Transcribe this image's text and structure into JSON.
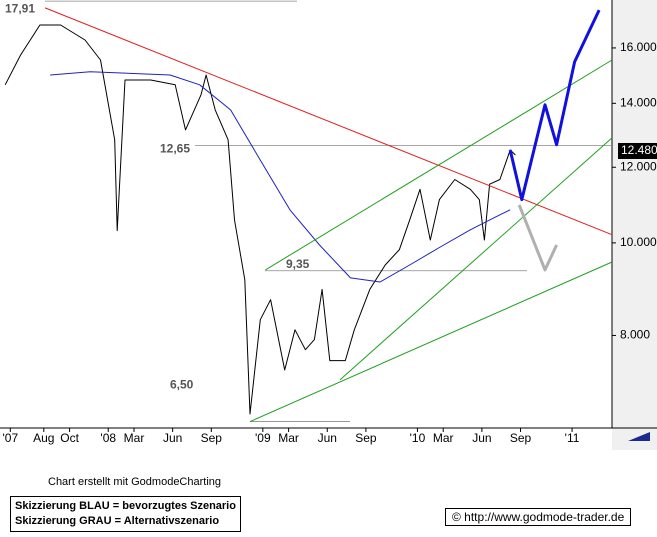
{
  "chart_data": {
    "type": "line",
    "log_scale": true,
    "xlim": [
      -8.4,
      39.1
    ],
    "xticks": [
      {
        "value": -7.6,
        "label": "'07"
      },
      {
        "value": -5,
        "label": "Aug"
      },
      {
        "value": -3,
        "label": "Oct"
      },
      {
        "value": 0,
        "label": "'08"
      },
      {
        "value": 2,
        "label": "Mar"
      },
      {
        "value": 5,
        "label": "Jun"
      },
      {
        "value": 8,
        "label": "Sep"
      },
      {
        "value": 12,
        "label": "'09"
      },
      {
        "value": 14,
        "label": "Mar"
      },
      {
        "value": 17,
        "label": "Jun"
      },
      {
        "value": 20,
        "label": "Sep"
      },
      {
        "value": 24,
        "label": "'10"
      },
      {
        "value": 26,
        "label": "Mar"
      },
      {
        "value": 29,
        "label": "Jun"
      },
      {
        "value": 32,
        "label": "Sep"
      },
      {
        "value": 36,
        "label": "'11"
      }
    ],
    "ylim": [
      6.4,
      17.96
    ],
    "yticks": [
      {
        "value": 8,
        "label": "8.000"
      },
      {
        "value": 10,
        "label": "10.000"
      },
      {
        "value": 12,
        "label": "12.000"
      },
      {
        "value": 14,
        "label": "14.000"
      },
      {
        "value": 16,
        "label": "16.000"
      }
    ],
    "last_price": {
      "value": 12.48,
      "label": "12.480"
    },
    "levels": [
      {
        "value": 17.91,
        "label": "17,91"
      },
      {
        "value": 12.65,
        "label": "12,65"
      },
      {
        "value": 9.35,
        "label": "9,35"
      },
      {
        "value": 6.5,
        "label": "6,50"
      }
    ],
    "series": [
      {
        "color": "#000000",
        "x": [
          -8.0,
          -6.8,
          -5.3,
          -3.7,
          -1.8,
          -0.6,
          0.5,
          0.7,
          1.3,
          3.3,
          5.2,
          6.0,
          7.2,
          7.6,
          8.3,
          9.3,
          9.8,
          10.6,
          11.0,
          11.8,
          12.6,
          13.7,
          14.5,
          15.3,
          16.0,
          16.6,
          17.2,
          18.4,
          19.1,
          20.3,
          21.5,
          22.6,
          23.4,
          24.2,
          25.0,
          25.7,
          26.9,
          28.1,
          28.8,
          29.2,
          29.6,
          30.4,
          31.2,
          31.6
        ],
        "values": [
          14.64,
          15.73,
          16.91,
          16.91,
          16.31,
          15.54,
          12.82,
          10.3,
          14.81,
          14.81,
          14.64,
          13.13,
          14.29,
          14.99,
          13.78,
          12.82,
          10.57,
          9.15,
          6.62,
          8.31,
          8.72,
          7.36,
          8.11,
          7.73,
          7.92,
          8.94,
          7.53,
          7.53,
          8.11,
          8.94,
          9.48,
          9.84,
          10.57,
          11.38,
          10.07,
          11.1,
          11.65,
          11.38,
          11.1,
          10.07,
          11.52,
          11.65,
          12.51,
          12.36
        ]
      },
      {
        "color": "#2020c0",
        "x": [
          -4.5,
          -1.4,
          4.8,
          7.1,
          9.5,
          11.8,
          14.1,
          16.4,
          18.8,
          21.1,
          23.4,
          25.7,
          28.1,
          30.4,
          31.2
        ],
        "values": [
          14.99,
          15.11,
          14.99,
          14.64,
          13.78,
          12.21,
          10.83,
          9.95,
          9.19,
          9.1,
          9.48,
          9.89,
          10.32,
          10.7,
          10.83
        ]
      },
      {
        "color": "#e02020",
        "x": [
          -4.9,
          39.1
        ],
        "values": [
          17.62,
          10.2
        ]
      },
      {
        "color": "#20a020",
        "x": [
          12.2,
          39.1
        ],
        "values": [
          9.37,
          15.54
        ]
      },
      {
        "color": "#20a020",
        "x": [
          18.0,
          39.1
        ],
        "values": [
          7.19,
          12.88
        ]
      },
      {
        "color": "#20a020",
        "x": [
          11.0,
          39.1
        ],
        "values": [
          6.5,
          9.55
        ]
      },
      {
        "color": "#1010e0",
        "x": [
          31.2,
          32.1,
          33.9,
          34.8,
          36.2,
          38.1
        ],
        "values": [
          12.51,
          11.1,
          13.95,
          12.67,
          15.47,
          17.53
        ]
      },
      {
        "color": "#b0b0b0",
        "x": [
          31.9,
          33.9,
          34.8
        ],
        "values": [
          10.96,
          9.37,
          9.95
        ]
      }
    ]
  },
  "footer": {
    "credit": "Chart erstellt mit GodmodeCharting",
    "legend": [
      "Skizzierung BLAU = bevorzugtes Szenario",
      "Skizzierung GRAU = Alternativszenario"
    ],
    "copyright": "© http://www.godmode-trader.de"
  }
}
